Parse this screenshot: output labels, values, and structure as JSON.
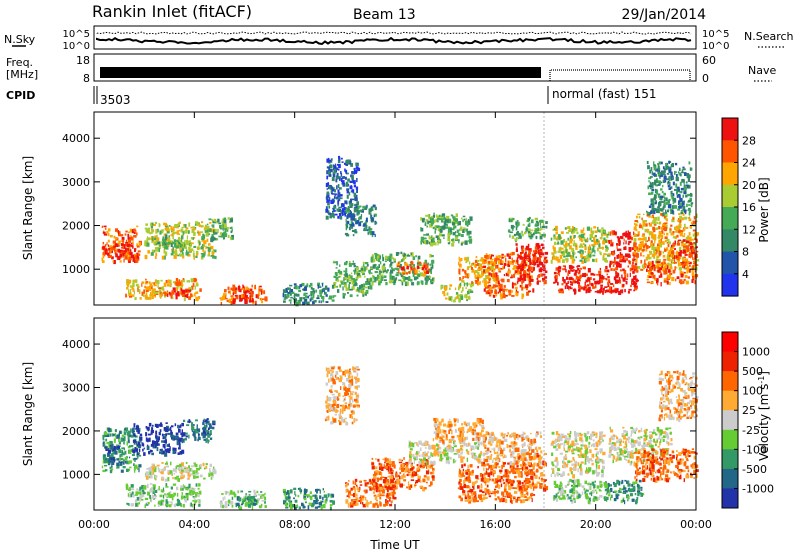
{
  "header": {
    "station": "Rankin Inlet (fitACF)",
    "beam": "Beam 13",
    "date": "29/Jan/2014"
  },
  "strip_labels": {
    "nsky": "N.Sky",
    "nsearch": "N.Search",
    "freq_line1": "Freq.",
    "freq_line2": "[MHz]",
    "nave": "Nave",
    "cpid": "CPID",
    "cpid_value_1": "3503",
    "cpid_value_2": "normal (fast) 151"
  },
  "noise_axis": {
    "left_ticks": [
      "10^5",
      "10^0"
    ],
    "right_ticks": [
      "10^5",
      "10^0"
    ]
  },
  "freq_axis": {
    "left_ticks": [
      "18",
      "8"
    ],
    "right_ticks": [
      "60",
      "0"
    ]
  },
  "chart_data": [
    {
      "type": "heatmap",
      "parameter": "Power",
      "ylabel": "Slant Range [km]",
      "yticks": [
        "1000",
        "2000",
        "3000",
        "4000"
      ],
      "ylim": [
        180,
        4600
      ],
      "xlim": [
        0,
        24
      ],
      "colorbar_label": "Power [dB]",
      "colorbar_ticks": [
        "4",
        "8",
        "12",
        "16",
        "20",
        "24",
        "28"
      ],
      "colorbar_colors": [
        "#2233ee",
        "#2255aa",
        "#338866",
        "#44aa55",
        "#aacc33",
        "#ffa500",
        "#ff5500",
        "#ee1111"
      ],
      "patches": [
        {
          "t0": 0.3,
          "t1": 1.8,
          "r0": 1200,
          "r1": 2000,
          "level": 6
        },
        {
          "t0": 0.4,
          "t1": 1.5,
          "r0": 1300,
          "r1": 1600,
          "level": 7
        },
        {
          "t0": 2.0,
          "t1": 4.8,
          "r0": 1300,
          "r1": 2100,
          "level": 4
        },
        {
          "t0": 2.3,
          "t1": 3.6,
          "r0": 1500,
          "r1": 1800,
          "level": 3
        },
        {
          "t0": 1.2,
          "t1": 4.2,
          "r0": 350,
          "r1": 800,
          "level": 5
        },
        {
          "t0": 2.8,
          "t1": 3.8,
          "r0": 400,
          "r1": 600,
          "level": 7
        },
        {
          "t0": 4.5,
          "t1": 5.5,
          "r0": 1700,
          "r1": 2200,
          "level": 3
        },
        {
          "t0": 5.0,
          "t1": 6.8,
          "r0": 250,
          "r1": 650,
          "level": 6
        },
        {
          "t0": 5.5,
          "t1": 6.3,
          "r0": 300,
          "r1": 550,
          "level": 7
        },
        {
          "t0": 7.5,
          "t1": 9.5,
          "r0": 250,
          "r1": 700,
          "level": 2
        },
        {
          "t0": 9.2,
          "t1": 10.5,
          "r0": 2200,
          "r1": 3600,
          "level": 1
        },
        {
          "t0": 9.5,
          "t1": 11.0,
          "r0": 400,
          "r1": 1200,
          "level": 3
        },
        {
          "t0": 10.0,
          "t1": 11.2,
          "r0": 1800,
          "r1": 2500,
          "level": 2
        },
        {
          "t0": 11.0,
          "t1": 13.5,
          "r0": 700,
          "r1": 1400,
          "level": 3
        },
        {
          "t0": 12.0,
          "t1": 13.3,
          "r0": 900,
          "r1": 1200,
          "level": 6
        },
        {
          "t0": 13.0,
          "t1": 15.0,
          "r0": 1600,
          "r1": 2300,
          "level": 3
        },
        {
          "t0": 13.8,
          "t1": 15.0,
          "r0": 300,
          "r1": 700,
          "level": 4
        },
        {
          "t0": 14.5,
          "t1": 16.0,
          "r0": 700,
          "r1": 1300,
          "level": 5
        },
        {
          "t0": 15.5,
          "t1": 17.5,
          "r0": 400,
          "r1": 1400,
          "level": 6
        },
        {
          "t0": 16.8,
          "t1": 18.0,
          "r0": 700,
          "r1": 1600,
          "level": 7
        },
        {
          "t0": 16.5,
          "t1": 18.0,
          "r0": 1700,
          "r1": 2200,
          "level": 3
        },
        {
          "t0": 18.2,
          "t1": 20.5,
          "r0": 1200,
          "r1": 2000,
          "level": 4
        },
        {
          "t0": 18.3,
          "t1": 20.5,
          "r0": 500,
          "r1": 1100,
          "level": 7
        },
        {
          "t0": 20.5,
          "t1": 21.6,
          "r0": 500,
          "r1": 1900,
          "level": 7
        },
        {
          "t0": 21.5,
          "t1": 24.0,
          "r0": 1000,
          "r1": 2300,
          "level": 5
        },
        {
          "t0": 22.0,
          "t1": 24.0,
          "r0": 700,
          "r1": 1200,
          "level": 6
        },
        {
          "t0": 22.0,
          "t1": 23.8,
          "r0": 2300,
          "r1": 3500,
          "level": 2
        },
        {
          "t0": 23.0,
          "t1": 24.0,
          "r0": 1300,
          "r1": 1700,
          "level": 7
        }
      ]
    },
    {
      "type": "heatmap",
      "parameter": "Velocity",
      "ylabel": "Slant Range [km]",
      "yticks": [
        "1000",
        "2000",
        "3000",
        "4000"
      ],
      "ylim": [
        180,
        4600
      ],
      "xlim": [
        0,
        24
      ],
      "xlabel": "Time UT",
      "xticks": [
        "00:00",
        "04:00",
        "08:00",
        "12:00",
        "16:00",
        "20:00",
        "00:00"
      ],
      "colorbar_label": "Velocity [m s",
      "colorbar_label_sup": "-1",
      "colorbar_label_end": "]",
      "colorbar_ticks": [
        "1000",
        "500",
        "100",
        "25",
        "-25",
        "-100",
        "-500",
        "-1000"
      ],
      "colorbar_colors": [
        "#2233aa",
        "#226688",
        "#339966",
        "#66cc33",
        "#cccccc",
        "#ffaa33",
        "#ff6600",
        "#ee2200",
        "#ff0000"
      ],
      "patches": [
        {
          "t0": 0.3,
          "t1": 1.8,
          "r0": 1100,
          "r1": 2100,
          "level": 2
        },
        {
          "t0": 0.4,
          "t1": 1.2,
          "r0": 1300,
          "r1": 1700,
          "level": 1
        },
        {
          "t0": 1.5,
          "t1": 3.5,
          "r0": 1500,
          "r1": 2200,
          "level": 0
        },
        {
          "t0": 2.0,
          "t1": 4.8,
          "r0": 900,
          "r1": 1300,
          "level": 4
        },
        {
          "t0": 1.2,
          "t1": 4.2,
          "r0": 300,
          "r1": 800,
          "level": 3
        },
        {
          "t0": 3.5,
          "t1": 4.8,
          "r0": 1800,
          "r1": 2300,
          "level": 1
        },
        {
          "t0": 5.0,
          "t1": 6.8,
          "r0": 250,
          "r1": 650,
          "level": 3
        },
        {
          "t0": 5.6,
          "t1": 6.4,
          "r0": 300,
          "r1": 500,
          "level": 2
        },
        {
          "t0": 7.5,
          "t1": 9.5,
          "r0": 250,
          "r1": 700,
          "level": 2
        },
        {
          "t0": 9.2,
          "t1": 10.5,
          "r0": 2200,
          "r1": 3500,
          "level": 5
        },
        {
          "t0": 10.0,
          "t1": 12.0,
          "r0": 300,
          "r1": 900,
          "level": 6
        },
        {
          "t0": 11.0,
          "t1": 13.5,
          "r0": 700,
          "r1": 1400,
          "level": 6
        },
        {
          "t0": 12.5,
          "t1": 15.5,
          "r0": 1300,
          "r1": 1800,
          "level": 4
        },
        {
          "t0": 13.5,
          "t1": 15.5,
          "r0": 1800,
          "r1": 2300,
          "level": 5
        },
        {
          "t0": 14.5,
          "t1": 17.5,
          "r0": 400,
          "r1": 1300,
          "level": 6
        },
        {
          "t0": 15.5,
          "t1": 17.8,
          "r0": 1300,
          "r1": 2000,
          "level": 5
        },
        {
          "t0": 16.8,
          "t1": 18.0,
          "r0": 700,
          "r1": 1500,
          "level": 6
        },
        {
          "t0": 18.2,
          "t1": 20.3,
          "r0": 1000,
          "r1": 2000,
          "level": 4
        },
        {
          "t0": 18.3,
          "t1": 20.5,
          "r0": 400,
          "r1": 900,
          "level": 3
        },
        {
          "t0": 20.3,
          "t1": 21.8,
          "r0": 400,
          "r1": 900,
          "level": 2
        },
        {
          "t0": 20.5,
          "t1": 23.0,
          "r0": 1300,
          "r1": 2100,
          "level": 4
        },
        {
          "t0": 21.5,
          "t1": 24.0,
          "r0": 900,
          "r1": 1600,
          "level": 6
        },
        {
          "t0": 22.5,
          "t1": 24.0,
          "r0": 2300,
          "r1": 3400,
          "level": 5
        }
      ]
    }
  ]
}
